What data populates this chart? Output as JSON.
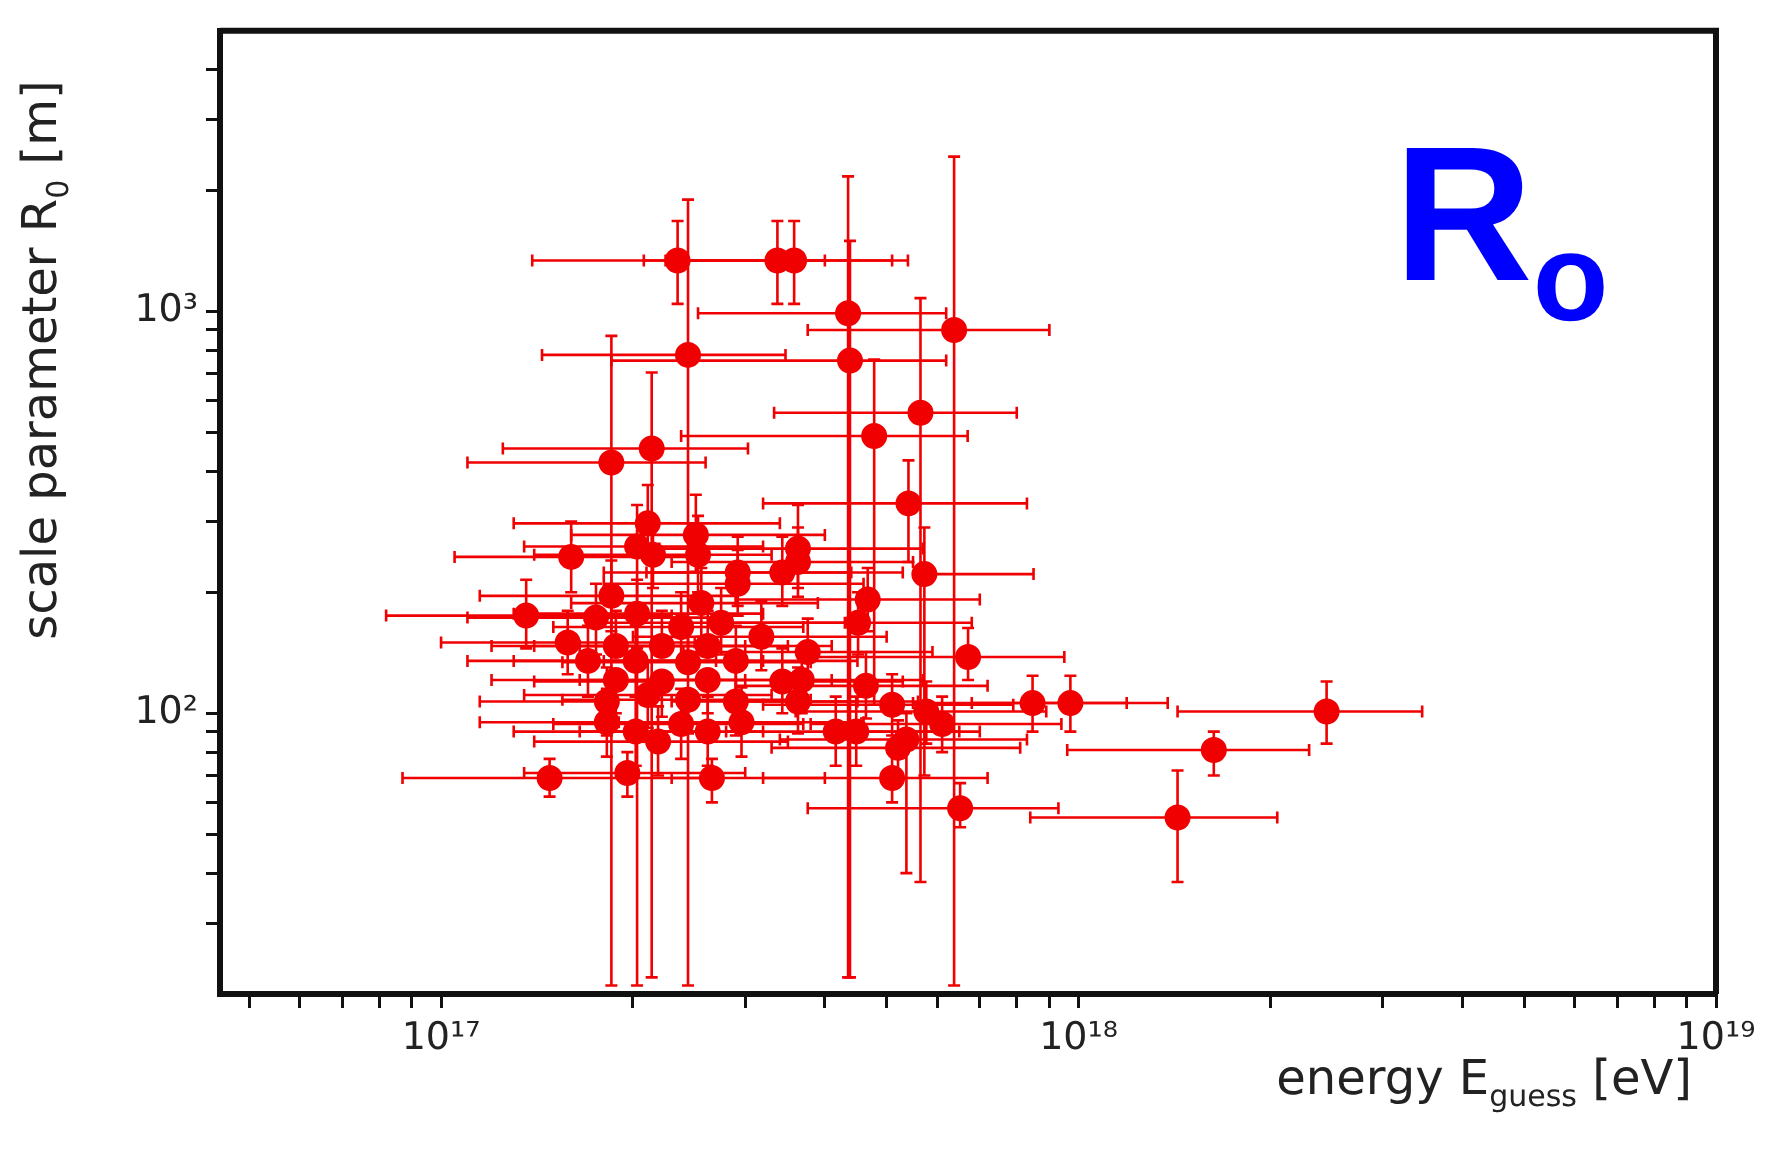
{
  "chart_data": {
    "type": "scatter",
    "xlabel": "energy E$_{guess}$ [eV]",
    "ylabel": "scale parameter   R$_{0}$ [m]",
    "annotations": [
      "R$_{o}$"
    ],
    "log": "xy",
    "color": "#f00000",
    "marker": "circle",
    "legend": false,
    "xlim": [
      4.5e+16,
      1e+19
    ],
    "ylim": [
      20,
      5000
    ],
    "xticks": [
      {
        "value": 5e+16,
        "label": null
      },
      {
        "value": 6e+16,
        "label": null
      },
      {
        "value": 7e+16,
        "label": null
      },
      {
        "value": 8e+16,
        "label": null
      },
      {
        "value": 9e+16,
        "label": null
      },
      {
        "value": 1e+17,
        "label": "10¹⁷"
      },
      {
        "value": 2e+17,
        "label": null
      },
      {
        "value": 3e+17,
        "label": null
      },
      {
        "value": 4e+17,
        "label": null
      },
      {
        "value": 5e+17,
        "label": null
      },
      {
        "value": 6e+17,
        "label": null
      },
      {
        "value": 7e+17,
        "label": null
      },
      {
        "value": 8e+17,
        "label": null
      },
      {
        "value": 9e+17,
        "label": null
      },
      {
        "value": 1e+18,
        "label": "10¹⁸"
      },
      {
        "value": 2e+18,
        "label": null
      },
      {
        "value": 3e+18,
        "label": null
      },
      {
        "value": 4e+18,
        "label": null
      },
      {
        "value": 5e+18,
        "label": null
      },
      {
        "value": 6e+18,
        "label": null
      },
      {
        "value": 7e+18,
        "label": null
      },
      {
        "value": 8e+18,
        "label": null
      },
      {
        "value": 9e+18,
        "label": null
      },
      {
        "value": 1e+19,
        "label": "10¹⁹"
      }
    ],
    "yticks": [
      {
        "value": 30,
        "label": null
      },
      {
        "value": 40,
        "label": null
      },
      {
        "value": 50,
        "label": null
      },
      {
        "value": 60,
        "label": null
      },
      {
        "value": 70,
        "label": null
      },
      {
        "value": 80,
        "label": null
      },
      {
        "value": 90,
        "label": null
      },
      {
        "value": 100,
        "label": "10²"
      },
      {
        "value": 200,
        "label": null
      },
      {
        "value": 300,
        "label": null
      },
      {
        "value": 400,
        "label": null
      },
      {
        "value": 500,
        "label": null
      },
      {
        "value": 600,
        "label": null
      },
      {
        "value": 700,
        "label": null
      },
      {
        "value": 800,
        "label": null
      },
      {
        "value": 900,
        "label": null
      },
      {
        "value": 1000,
        "label": "10³"
      },
      {
        "value": 2000,
        "label": null
      },
      {
        "value": 3000,
        "label": null
      },
      {
        "value": 4000,
        "label": null
      }
    ],
    "x": [
      2.35e+17,
      3.37e+17,
      3.58e+17,
      4.35e+17,
      6.38e+17,
      2.44e+17,
      4.38e+17,
      5.65e+17,
      4.78e+17,
      1.85e+17,
      2.14e+17,
      5.41e+17,
      2.11e+17,
      2.51e+17,
      2.03e+17,
      1.6e+17,
      2.15e+17,
      2.53e+17,
      3.63e+17,
      3.63e+17,
      5.73e+17,
      2.92e+17,
      3.43e+17,
      2.92e+17,
      1.85e+17,
      2.56e+17,
      4.67e+17,
      1.36e+17,
      1.75e+17,
      2.03e+17,
      4.51e+17,
      2.75e+17,
      2.38e+17,
      3.18e+17,
      6.71e+17,
      1.58e+17,
      1.88e+17,
      2.22e+17,
      2.62e+17,
      3.76e+17,
      1.7e+17,
      2.02e+17,
      2.44e+17,
      2.9e+17,
      3.43e+17,
      3.68e+17,
      4.64e+17,
      1.88e+17,
      2.22e+17,
      2.62e+17,
      1.82e+17,
      2.11e+17,
      2.44e+17,
      2.9e+17,
      3.63e+17,
      5.1e+17,
      5.77e+17,
      6.11e+17,
      1.82e+17,
      2.02e+17,
      2.19e+17,
      2.38e+17,
      2.62e+17,
      2.96e+17,
      4.16e+17,
      4.48e+17,
      5.37e+17,
      5.21e+17,
      1.48e+17,
      1.96e+17,
      2.66e+17,
      5.1e+17,
      6.52e+17,
      8.47e+17,
      9.71e+17,
      2.45e+18,
      1.63e+18,
      1.43e+18
    ],
    "values": [
      1340,
      1340,
      1340,
      990,
      900,
      780,
      755,
      560,
      490,
      421,
      456,
      333,
      297,
      278,
      260,
      245,
      248,
      248,
      257,
      238,
      222,
      224,
      224,
      210,
      196,
      188,
      192,
      175,
      173,
      177,
      168,
      168,
      164,
      155,
      138,
      150,
      147,
      147,
      147,
      142,
      135,
      135,
      134,
      135,
      120,
      121,
      117,
      121,
      120,
      121,
      107,
      111,
      108,
      107,
      107,
      105,
      101,
      94,
      95,
      90,
      85,
      94,
      90,
      95,
      90,
      90,
      86,
      82,
      69,
      71,
      69,
      69,
      58,
      106,
      106,
      101,
      81,
      55
    ],
    "xerrors": [
      [
        1.39e+17,
        4e+17
      ],
      [
        2.08e+17,
        5.1e+17
      ],
      [
        2.25e+17,
        5.4e+17
      ],
      [
        2.53e+17,
        6.2e+17
      ],
      [
        3.76e+17,
        9e+17
      ],
      [
        1.44e+17,
        3.47e+17
      ],
      [
        1.85e+17,
        6.2e+17
      ],
      [
        3.33e+17,
        8e+17
      ],
      [
        2.38e+17,
        6.7e+17
      ],
      [
        1.1e+17,
        2.6e+17
      ],
      [
        1.25e+17,
        3.03e+17
      ],
      [
        3.2e+17,
        8.3e+17
      ],
      [
        1.3e+17,
        3.4e+17
      ],
      [
        1.6e+17,
        4e+17
      ],
      [
        1.35e+17,
        3.2e+17
      ],
      [
        1.05e+17,
        2.6e+17
      ],
      [
        1.4e+17,
        3.3e+17
      ],
      null,
      [
        2.2e+17,
        5.7e+17
      ],
      [
        2.3e+17,
        5.5e+17
      ],
      [
        5.73e+17,
        8.5e+17
      ],
      [
        1.8e+17,
        4.4e+17
      ],
      [
        2.1e+17,
        5.3e+17
      ],
      [
        1.8e+17,
        4.6e+17
      ],
      [
        1.15e+17,
        2.9e+17
      ],
      [
        1.6e+17,
        3.9e+17
      ],
      [
        2.9e+17,
        7e+17
      ],
      [
        8.2e+16,
        2.3e+17
      ],
      [
        1.1e+17,
        2.8e+17
      ],
      [
        1.3e+17,
        3.2e+17
      ],
      [
        2.8e+17,
        6.8e+17
      ],
      [
        1.7e+17,
        4.3e+17
      ],
      [
        1.5e+17,
        3.7e+17
      ],
      [
        2e+17,
        5e+17
      ],
      [
        3.8e+17,
        9.5e+17
      ],
      [
        1e+17,
        2.5e+17
      ],
      [
        1.2e+17,
        3e+17
      ],
      [
        1.4e+17,
        3.5e+17
      ],
      [
        1.65e+17,
        4.1e+17
      ],
      [
        2.4e+17,
        5.9e+17
      ],
      [
        1.1e+17,
        2.7e+17
      ],
      [
        1.3e+17,
        3.2e+17
      ],
      [
        1.55e+17,
        3.8e+17
      ],
      [
        1.8e+17,
        4.5e+17
      ],
      [
        3.43e+17,
        5.3e+17
      ],
      [
        2.3e+17,
        5.7e+17
      ],
      [
        2.9e+17,
        7.2e+17
      ],
      [
        1.2e+17,
        3e+17
      ],
      [
        1.4e+17,
        2.22e+17
      ],
      [
        1.65e+17,
        4.1e+17
      ],
      [
        1.15e+17,
        1.82e+17
      ],
      [
        1.35e+17,
        3.3e+17
      ],
      [
        1.55e+17,
        3.8e+17
      ],
      [
        2.9e+17,
        4.5e+17
      ],
      [
        2.3e+17,
        5.6e+17
      ],
      [
        3.2e+17,
        7.9e+17
      ],
      [
        3.6e+17,
        8.9e+17
      ],
      [
        3.8e+17,
        9.4e+17
      ],
      [
        1.15e+17,
        2.9e+17
      ],
      [
        1.3e+17,
        3.2e+17
      ],
      [
        1.4e+17,
        3.5e+17
      ],
      [
        1.5e+17,
        3.7e+17
      ],
      [
        1.65e+17,
        2.62e+17
      ],
      [
        1.9e+17,
        4.6e+17
      ],
      [
        4.16e+17,
        6.5e+17
      ],
      [
        2.8e+17,
        7e+17
      ],
      [
        3.4e+17,
        8.3e+17
      ],
      [
        3.3e+17,
        8.1e+17
      ],
      [
        8.7e+16,
        2.6e+17
      ],
      [
        1.35e+17,
        3e+17
      ],
      [
        2.3e+17,
        4e+17
      ],
      [
        3.2e+17,
        7.2e+17
      ],
      [
        3.76e+17,
        9.3e+17
      ],
      [
        5.5e+17,
        1.19e+18
      ],
      [
        6.8e+17,
        1.38e+18
      ],
      [
        1.43e+18,
        3.46e+18
      ],
      [
        9.6e+17,
        2.3e+18
      ],
      [
        8.4e+17,
        2.05e+18
      ]
    ],
    "errors": [
      [
        1045,
        1680
      ],
      [
        1045,
        1680
      ],
      [
        1045,
        1680
      ],
      [
        22,
        2170
      ],
      [
        21,
        2430
      ],
      [
        21,
        1900
      ],
      [
        22,
        1500
      ],
      [
        38,
        1080
      ],
      [
        105,
        760
      ],
      [
        21,
        870
      ],
      [
        22,
        705
      ],
      [
        238,
        426
      ],
      [
        240,
        370
      ],
      [
        225,
        350
      ],
      [
        21,
        330
      ],
      [
        200,
        300
      ],
      [
        205,
        300
      ],
      [
        200,
        310
      ],
      [
        205,
        330
      ],
      [
        195,
        290
      ],
      [
        70,
        290
      ],
      [
        185,
        275
      ],
      [
        185,
        275
      ],
      [
        175,
        255
      ],
      [
        160,
        240
      ],
      [
        155,
        230
      ],
      [
        160,
        230
      ],
      [
        145,
        215
      ],
      [
        140,
        210
      ],
      [
        145,
        215
      ],
      [
        140,
        200
      ],
      [
        140,
        205
      ],
      [
        135,
        200
      ],
      [
        128,
        190
      ],
      [
        121,
        163
      ],
      [
        125,
        180
      ],
      [
        147,
        180
      ],
      [
        147,
        180
      ],
      [
        147,
        180
      ],
      [
        118,
        172
      ],
      [
        110,
        165
      ],
      [
        110,
        165
      ],
      [
        134,
        163
      ],
      [
        110,
        165
      ],
      [
        100,
        145
      ],
      [
        100,
        147
      ],
      [
        97,
        142
      ],
      [
        100,
        121
      ],
      [
        98,
        120
      ],
      [
        100,
        121
      ],
      [
        88,
        130
      ],
      [
        92,
        135
      ],
      [
        89,
        108
      ],
      [
        88,
        130
      ],
      [
        89,
        130
      ],
      [
        88,
        125
      ],
      [
        84,
        120
      ],
      [
        80,
        110
      ],
      [
        78,
        115
      ],
      [
        74,
        110
      ],
      [
        70,
        104
      ],
      [
        77,
        115
      ],
      [
        74,
        110
      ],
      [
        78,
        116
      ],
      [
        74,
        110
      ],
      [
        74,
        110
      ],
      [
        40,
        100
      ],
      [
        70,
        96
      ],
      [
        62,
        77
      ],
      [
        62,
        80
      ],
      [
        60,
        77
      ],
      [
        60,
        80
      ],
      [
        52,
        67
      ],
      [
        90,
        124
      ],
      [
        90,
        124
      ],
      [
        84,
        120
      ],
      [
        70,
        90
      ],
      [
        38,
        72
      ]
    ]
  }
}
